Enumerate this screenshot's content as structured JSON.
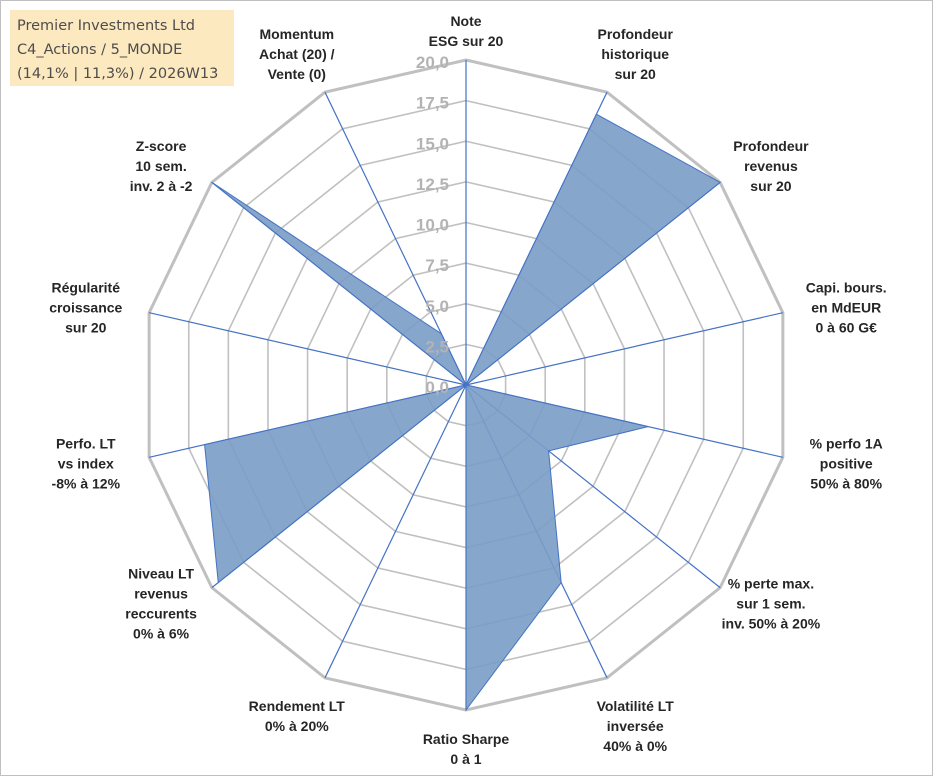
{
  "title_box": {
    "line1": "Premier Investments Ltd",
    "line2": "C4_Actions / 5_MONDE",
    "line3": "(14,1% | 11,3%) / 2026W13"
  },
  "chart_data": {
    "type": "radar",
    "title": "Premier Investments Ltd",
    "rmin": 0,
    "rmax": 20,
    "step": 2.5,
    "tick_labels": [
      "0,0",
      "2,5",
      "5,0",
      "7,5",
      "10,0",
      "12,5",
      "15,0",
      "17,5",
      "20,0"
    ],
    "categories": [
      [
        "Note",
        "ESG sur 20"
      ],
      [
        "Profondeur",
        "historique",
        "sur 20"
      ],
      [
        "Profondeur",
        "revenus",
        "sur 20"
      ],
      [
        "Capi. bours.",
        "en MdEUR",
        "0 à 60 G€"
      ],
      [
        "% perfo 1A",
        "positive",
        "50% à 80%"
      ],
      [
        "% perte max.",
        "sur 1 sem.",
        "inv. 50% à 20%"
      ],
      [
        "Volatilité LT",
        "inversée",
        "40% à 0%"
      ],
      [
        "Ratio Sharpe",
        "0 à 1"
      ],
      [
        "Rendement LT",
        "0% à 20%"
      ],
      [
        "Niveau LT",
        "revenus",
        "reccurents",
        "0% à 6%"
      ],
      [
        "Perfo. LT",
        "vs index",
        "-8% à 12%"
      ],
      [
        "Régularité",
        "croissance",
        "sur 20"
      ],
      [
        "Z-score",
        "10 sem.",
        "inv. 2 à -2"
      ],
      [
        "Momentum",
        "Achat (20) /",
        "Vente (0)"
      ]
    ],
    "series": [
      {
        "name": "Premier Investments Ltd",
        "values": [
          0,
          18.5,
          20,
          0,
          11.5,
          6.5,
          13.5,
          20,
          0,
          19.5,
          16.5,
          0,
          20,
          3.5
        ]
      }
    ],
    "colors": {
      "fill": "#7a9cc6",
      "line": "#4472c4",
      "grid": "#c0c0c0",
      "spoke": "#4472c4",
      "ticks": "#b3b3b3",
      "title_bg": "#fde9c0"
    }
  }
}
